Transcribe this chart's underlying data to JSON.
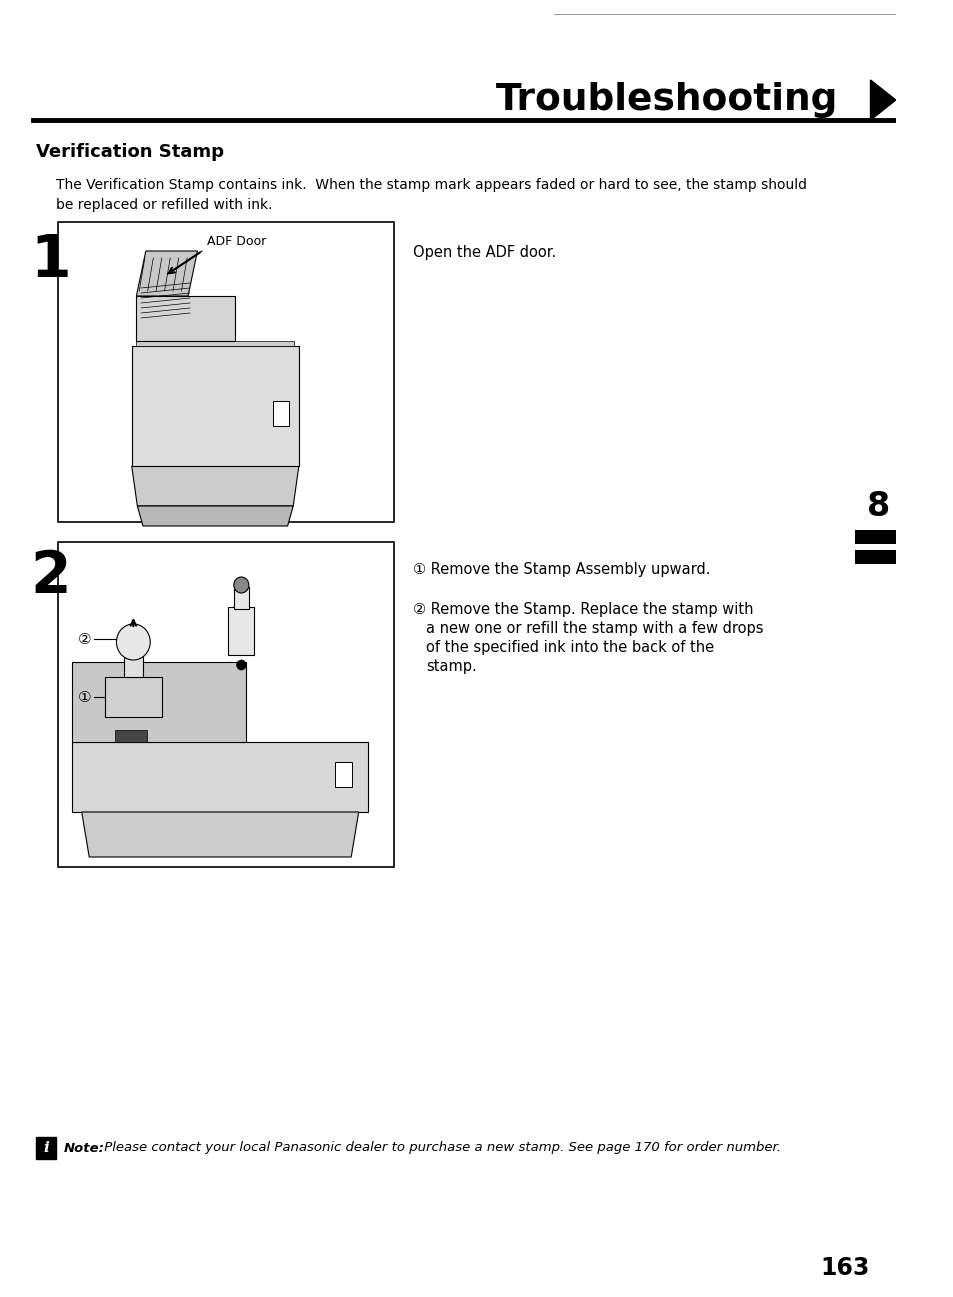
{
  "title": "Troubleshooting",
  "section_title": "Verification Stamp",
  "intro_text": "The Verification Stamp contains ink.  When the stamp mark appears faded or hard to see, the stamp should\nbe replaced or refilled with ink.",
  "step1_num": "1",
  "step1_label": "ADF Door",
  "step1_text": "Open the ADF door.",
  "step2_num": "2",
  "step2_sub1": "① Remove the Stamp Assembly upward.",
  "step2_sub2_line1": "② Remove the Stamp. Replace the stamp with",
  "step2_sub2_line2": "a new one or refill the stamp with a few drops",
  "step2_sub2_line3": "of the specified ink into the back of the",
  "step2_sub2_line4": "stamp.",
  "note_icon": "i",
  "note_label": "Note:",
  "note_text": " Please contact your local Panasonic dealer to purchase a new stamp. See page 170 for order number.",
  "page_num": "163",
  "chapter_num": "8",
  "bg_color": "#ffffff",
  "text_color": "#000000"
}
